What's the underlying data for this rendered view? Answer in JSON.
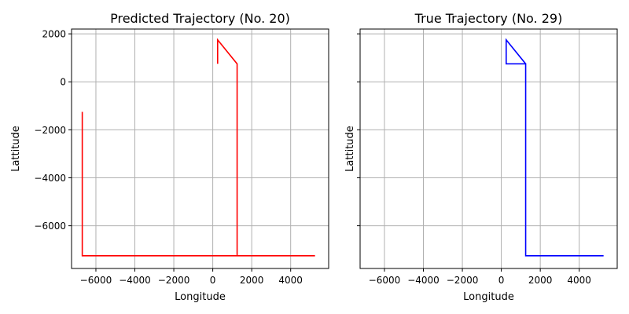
{
  "chart_data": [
    {
      "type": "line",
      "title": "Predicted Trajectory (No. 20)",
      "xlabel": "Longitude",
      "ylabel": "Lattitude",
      "xlim": [
        -7250,
        5950
      ],
      "ylim": [
        -7780,
        2200
      ],
      "xticks": [
        -6000,
        -4000,
        -2000,
        0,
        2000,
        4000
      ],
      "yticks": [
        -6000,
        -4000,
        -2000,
        0,
        2000
      ],
      "show_yticklabels": true,
      "grid": true,
      "series": [
        {
          "color": "#ff0000",
          "x": [
            -6700,
            -6700,
            1250,
            1250,
            250,
            250,
            250,
            1250,
            1250,
            5250
          ],
          "y": [
            -1250,
            -7250,
            -7250,
            750,
            1750,
            750,
            1750,
            750,
            -7250,
            -7250
          ]
        }
      ]
    },
    {
      "type": "line",
      "title": "True Trajectory (No. 29)",
      "xlabel": "Longitude",
      "ylabel": "Lattitude",
      "xlim": [
        -7250,
        5950
      ],
      "ylim": [
        -7780,
        2200
      ],
      "xticks": [
        -6000,
        -4000,
        -2000,
        0,
        2000,
        4000
      ],
      "yticks": [
        -6000,
        -4000,
        -2000,
        0,
        2000
      ],
      "show_yticklabels": false,
      "grid": true,
      "series": [
        {
          "color": "#0000ff",
          "x": [
            5250,
            1250,
            1250,
            250,
            250,
            1250
          ],
          "y": [
            -7250,
            -7250,
            750,
            750,
            1750,
            750
          ]
        }
      ]
    }
  ]
}
